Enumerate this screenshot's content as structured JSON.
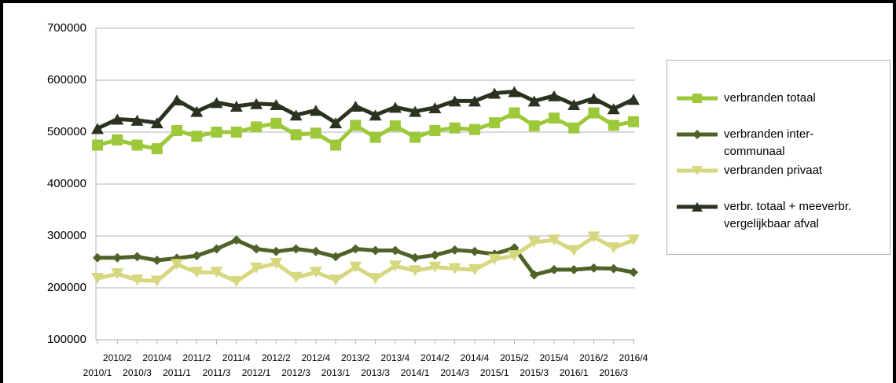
{
  "chart_data": {
    "type": "line",
    "categories": [
      "2010/1",
      "2010/2",
      "2010/3",
      "2010/4",
      "2011/1",
      "2011/2",
      "2011/3",
      "2011/4",
      "2012/1",
      "2012/2",
      "2012/3",
      "2012/4",
      "2013/1",
      "2013/2",
      "2013/3",
      "2013/4",
      "2014/1",
      "2014/2",
      "2014/3",
      "2014/4",
      "2015/1",
      "2015/2",
      "2015/3",
      "2015/4",
      "2016/1",
      "2016/2",
      "2016/3",
      "2016/4"
    ],
    "series": [
      {
        "name": "verbranden totaal",
        "color": "#9cc83a",
        "marker": "square",
        "values": [
          475000,
          485000,
          475000,
          468000,
          503000,
          492000,
          500000,
          500000,
          510000,
          517000,
          495000,
          498000,
          475000,
          513000,
          490000,
          512000,
          490000,
          503000,
          508000,
          505000,
          518000,
          537000,
          512000,
          527000,
          508000,
          537000,
          513000,
          520000
        ]
      },
      {
        "name": "verbranden inter-communaal",
        "color": "#4f6228",
        "marker": "diamond",
        "values": [
          258000,
          258000,
          260000,
          253000,
          257000,
          262000,
          275000,
          292000,
          275000,
          270000,
          275000,
          270000,
          260000,
          275000,
          272000,
          272000,
          258000,
          263000,
          273000,
          270000,
          265000,
          277000,
          225000,
          235000,
          235000,
          238000,
          237000,
          230000
        ]
      },
      {
        "name": "verbranden privaat",
        "color": "#d6d77e",
        "marker": "triangle-down",
        "values": [
          218000,
          227000,
          215000,
          213000,
          245000,
          230000,
          230000,
          212000,
          238000,
          247000,
          220000,
          230000,
          215000,
          240000,
          218000,
          242000,
          233000,
          240000,
          237000,
          235000,
          255000,
          262000,
          288000,
          292000,
          272000,
          298000,
          277000,
          292000
        ]
      },
      {
        "name": "verbr. totaal + meeverbr. vergelijkbaar afval",
        "color": "#2a3320",
        "marker": "triangle-up",
        "values": [
          507000,
          525000,
          523000,
          518000,
          562000,
          540000,
          557000,
          550000,
          555000,
          553000,
          533000,
          542000,
          518000,
          550000,
          533000,
          548000,
          540000,
          547000,
          560000,
          560000,
          575000,
          578000,
          560000,
          570000,
          553000,
          565000,
          545000,
          563000
        ]
      }
    ],
    "ylim": [
      100000,
      700000
    ],
    "yticks": [
      100000,
      200000,
      300000,
      400000,
      500000,
      600000,
      700000
    ],
    "grid": true
  }
}
